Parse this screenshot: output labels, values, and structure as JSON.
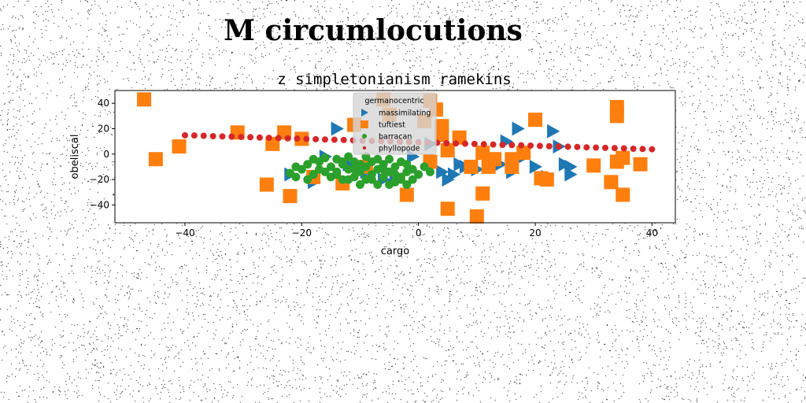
{
  "figure": {
    "suptitle": "M circumlocutions"
  },
  "chart_data": {
    "type": "scatter",
    "title": "z simpletonianism ramekins",
    "xlabel": "cargo",
    "ylabel": "obeliscal",
    "xlim": [
      -52,
      44
    ],
    "ylim": [
      -54,
      50
    ],
    "xticks": [
      -40,
      -20,
      0,
      20,
      40
    ],
    "yticks": [
      -40,
      -20,
      0,
      20,
      40
    ],
    "grid": false,
    "legend": {
      "title": "germanocentric",
      "placement": "top-center"
    },
    "series": [
      {
        "name": "massimilating",
        "marker": "triangle-right",
        "color": "#1f77b4",
        "points": [
          [
            -14,
            20
          ],
          [
            -18,
            -22
          ],
          [
            -22,
            -16
          ],
          [
            -16,
            -2
          ],
          [
            -12,
            -8
          ],
          [
            -9,
            -14
          ],
          [
            -6,
            -20
          ],
          [
            -4,
            -18
          ],
          [
            -1,
            -2
          ],
          [
            2,
            8
          ],
          [
            4,
            -14
          ],
          [
            5,
            -20
          ],
          [
            6,
            -16
          ],
          [
            7,
            -8
          ],
          [
            8,
            -10
          ],
          [
            10,
            -12
          ],
          [
            12,
            -2
          ],
          [
            14,
            -8
          ],
          [
            15,
            10
          ],
          [
            16,
            -14
          ],
          [
            17,
            20
          ],
          [
            18,
            -2
          ],
          [
            20,
            -10
          ],
          [
            22,
            -18
          ],
          [
            23,
            18
          ],
          [
            24,
            6
          ],
          [
            25,
            -8
          ],
          [
            26,
            -16
          ],
          [
            26,
            -10
          ]
        ]
      },
      {
        "name": "tuftiest",
        "marker": "square",
        "color": "#ff7f0e",
        "points": [
          [
            -47,
            43
          ],
          [
            -45,
            -4
          ],
          [
            -41,
            6
          ],
          [
            -31,
            17
          ],
          [
            -26,
            -24
          ],
          [
            -25,
            8
          ],
          [
            -23,
            17
          ],
          [
            -22,
            -33
          ],
          [
            -20,
            12
          ],
          [
            -18,
            -18
          ],
          [
            -13,
            -23
          ],
          [
            -11,
            23
          ],
          [
            -9,
            -10
          ],
          [
            -6,
            43
          ],
          [
            -5,
            31
          ],
          [
            -2,
            -32
          ],
          [
            1,
            26
          ],
          [
            2,
            42
          ],
          [
            3,
            35
          ],
          [
            4,
            22
          ],
          [
            4,
            15
          ],
          [
            5,
            3
          ],
          [
            5,
            -43
          ],
          [
            7,
            13
          ],
          [
            9,
            -10
          ],
          [
            10,
            -49
          ],
          [
            11,
            -31
          ],
          [
            11,
            1
          ],
          [
            12,
            -10
          ],
          [
            13,
            -4
          ],
          [
            16,
            -4
          ],
          [
            16,
            -10
          ],
          [
            18,
            1
          ],
          [
            20,
            27
          ],
          [
            21,
            -19
          ],
          [
            22,
            -20
          ],
          [
            30,
            -9
          ],
          [
            33,
            -22
          ],
          [
            34,
            37
          ],
          [
            34,
            30
          ],
          [
            34,
            -6
          ],
          [
            35,
            -3
          ],
          [
            35,
            -32
          ],
          [
            38,
            -8
          ],
          [
            2,
            -6
          ]
        ]
      },
      {
        "name": "barracan",
        "marker": "circle",
        "color": "#2ca02c",
        "points": [
          [
            -22,
            -15
          ],
          [
            -21,
            -18
          ],
          [
            -20,
            -12
          ],
          [
            -19,
            -8
          ],
          [
            -18,
            -16
          ],
          [
            -17,
            -6
          ],
          [
            -16,
            -3
          ],
          [
            -15,
            -10
          ],
          [
            -14,
            -14
          ],
          [
            -14,
            -4
          ],
          [
            -13,
            -8
          ],
          [
            -12,
            -12
          ],
          [
            -12,
            -2
          ],
          [
            -11,
            -18
          ],
          [
            -11,
            -6
          ],
          [
            -10,
            -14
          ],
          [
            -10,
            -24
          ],
          [
            -9,
            -10
          ],
          [
            -9,
            -2
          ],
          [
            -8,
            -20
          ],
          [
            -8,
            -16
          ],
          [
            -7,
            -12
          ],
          [
            -7,
            -24
          ],
          [
            -6,
            -8
          ],
          [
            -6,
            -18
          ],
          [
            -5,
            -14
          ],
          [
            -5,
            -4
          ],
          [
            -4,
            -22
          ],
          [
            -4,
            -10
          ],
          [
            -3,
            -18
          ],
          [
            -3,
            -6
          ],
          [
            -2,
            -14
          ],
          [
            -2,
            -24
          ],
          [
            -1,
            -12
          ],
          [
            0,
            -16
          ],
          [
            1,
            -10
          ],
          [
            2,
            -14
          ],
          [
            -15,
            -18
          ],
          [
            -13,
            -20
          ],
          [
            -17,
            -12
          ],
          [
            -19,
            -20
          ],
          [
            -21,
            -10
          ],
          [
            -9,
            -20
          ],
          [
            -7,
            -4
          ],
          [
            -5,
            -24
          ],
          [
            -3,
            -20
          ],
          [
            -1,
            -20
          ],
          [
            -11,
            -12
          ],
          [
            -13,
            -6
          ],
          [
            -10,
            -8
          ],
          [
            -8,
            -6
          ],
          [
            -16,
            -14
          ],
          [
            -18,
            -4
          ],
          [
            -14,
            -16
          ],
          [
            -12,
            -20
          ],
          [
            -6,
            -12
          ],
          [
            -4,
            -16
          ],
          [
            -2,
            -8
          ]
        ]
      },
      {
        "name": "phyllopode",
        "marker": "circle-small",
        "color": "#d62728",
        "points": [
          [
            -40,
            14.8
          ],
          [
            -38.4,
            14.6
          ],
          [
            -36.8,
            14.4
          ],
          [
            -35.2,
            14.1
          ],
          [
            -33.6,
            13.9
          ],
          [
            -32,
            13.7
          ],
          [
            -30.4,
            13.5
          ],
          [
            -28.8,
            13.3
          ],
          [
            -27.2,
            13.0
          ],
          [
            -25.6,
            12.8
          ],
          [
            -24,
            12.6
          ],
          [
            -22.4,
            12.4
          ],
          [
            -20.8,
            12.2
          ],
          [
            -19.2,
            11.9
          ],
          [
            -17.6,
            11.7
          ],
          [
            -16,
            11.5
          ],
          [
            -14.4,
            11.3
          ],
          [
            -12.8,
            11.1
          ],
          [
            -11.2,
            10.8
          ],
          [
            -9.6,
            10.6
          ],
          [
            -8,
            10.4
          ],
          [
            -6.4,
            10.2
          ],
          [
            -4.8,
            10.0
          ],
          [
            -3.2,
            9.7
          ],
          [
            -1.6,
            9.5
          ],
          [
            0,
            9.3
          ],
          [
            1.6,
            9.1
          ],
          [
            3.2,
            8.9
          ],
          [
            4.8,
            8.6
          ],
          [
            6.4,
            8.4
          ],
          [
            8,
            8.2
          ],
          [
            9.6,
            8.0
          ],
          [
            11.2,
            7.8
          ],
          [
            12.8,
            7.5
          ],
          [
            14.4,
            7.3
          ],
          [
            16,
            7.1
          ],
          [
            17.6,
            6.9
          ],
          [
            19.2,
            6.7
          ],
          [
            20.8,
            6.4
          ],
          [
            22.4,
            6.2
          ],
          [
            24,
            6.0
          ],
          [
            25.6,
            5.8
          ],
          [
            27.2,
            5.6
          ],
          [
            28.8,
            5.3
          ],
          [
            30.4,
            5.1
          ],
          [
            32,
            4.9
          ],
          [
            33.6,
            4.7
          ],
          [
            35.2,
            4.5
          ],
          [
            36.8,
            4.2
          ],
          [
            38.4,
            4.0
          ],
          [
            40,
            3.8
          ]
        ]
      }
    ]
  }
}
